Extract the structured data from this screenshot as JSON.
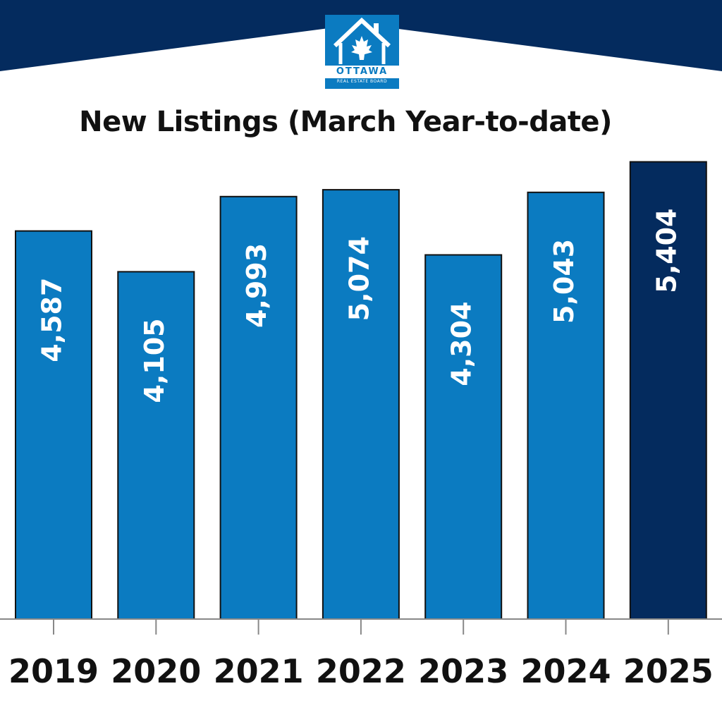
{
  "brand": {
    "name": "OTTAWA",
    "subtitle": "REAL ESTATE BOARD",
    "primary_color": "#0b7bc1",
    "dark_color": "#042b5e",
    "logo_icon": "house-maple-leaf-icon"
  },
  "chart_data": {
    "type": "bar",
    "title": "New Listings (March Year-to-date)",
    "xlabel": "",
    "ylabel": "",
    "categories": [
      "2019",
      "2020",
      "2021",
      "2022",
      "2023",
      "2024",
      "2025"
    ],
    "values": [
      4587,
      4105,
      4993,
      5074,
      4304,
      5043,
      5404
    ],
    "value_labels": [
      "4,587",
      "4,105",
      "4,993",
      "5,074",
      "4,304",
      "5,043",
      "5,404"
    ],
    "ylim": [
      0,
      5500
    ],
    "grid": false,
    "legend": "none",
    "bar_colors": [
      "#0b7bc1",
      "#0b7bc1",
      "#0b7bc1",
      "#0b7bc1",
      "#0b7bc1",
      "#0b7bc1",
      "#042b5e"
    ]
  }
}
